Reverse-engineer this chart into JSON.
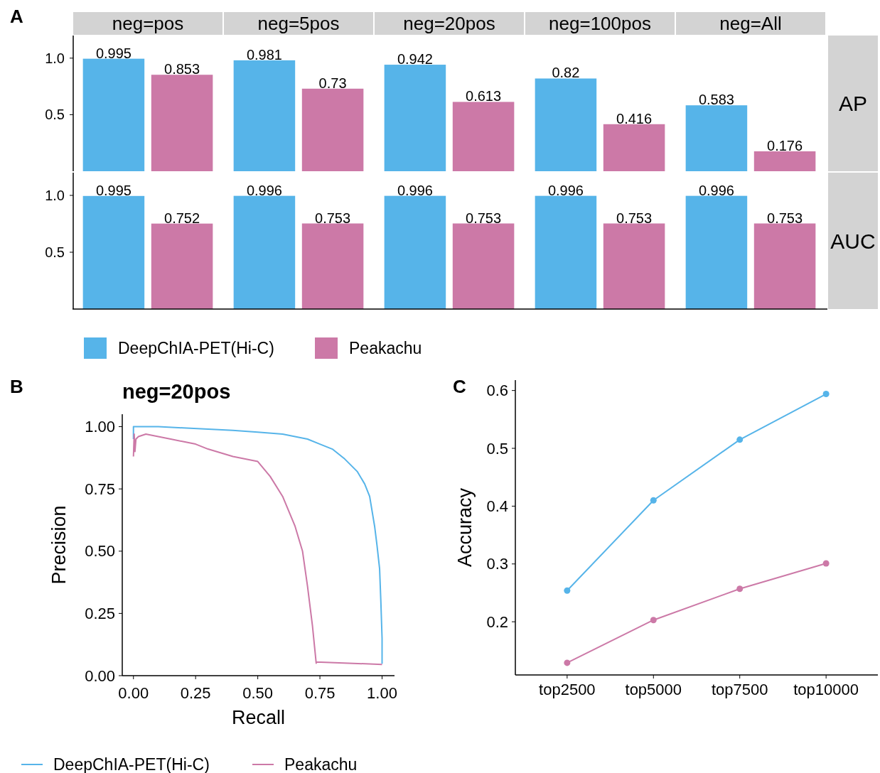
{
  "chart_data": [
    {
      "type": "bar",
      "annotations": [
        "A"
      ],
      "y2label": "AP",
      "categories": [
        "neg=pos",
        "neg=5pos",
        "neg=20pos",
        "neg=100pos",
        "neg=All"
      ],
      "series": [
        {
          "color": "#56b4e9",
          "values": [
            0.995,
            0.981,
            0.942,
            0.82,
            0.583
          ]
        },
        {
          "color": "#cc79a7",
          "values": [
            0.853,
            0.73,
            0.613,
            0.416,
            0.176
          ]
        }
      ],
      "ylim": [
        0,
        1.2
      ],
      "yticks": [
        {
          "value": 0.5,
          "label": "0.5"
        },
        {
          "value": 1,
          "label": "1.0"
        }
      ],
      "data_labels": true
    },
    {
      "type": "bar",
      "y2label": "AUC",
      "categories": [
        null,
        null,
        null,
        null,
        null
      ],
      "series": [
        {
          "name": "DeepChIA-PET(Hi-C)",
          "color": "#56b4e9",
          "values": [
            0.995,
            0.996,
            0.996,
            0.996,
            0.996
          ]
        },
        {
          "name": "Peakachu",
          "color": "#cc79a7",
          "values": [
            0.752,
            0.753,
            0.753,
            0.753,
            0.753
          ]
        }
      ],
      "ylim": [
        0,
        1.2
      ],
      "yticks": [
        {
          "value": 0.5,
          "label": "0.5"
        },
        {
          "value": 1,
          "label": "1.0"
        }
      ],
      "tick_labels": "y",
      "data_labels": true,
      "legend": "bottom"
    },
    {
      "type": "line",
      "title": "neg=20pos",
      "annotations": [
        "B"
      ],
      "xlabel": "Recall",
      "ylabel": "Precision",
      "legend": "bottom",
      "xlim": [
        -0.045,
        1.05
      ],
      "ylim": [
        0,
        1.05
      ],
      "xticks": [
        {
          "value": 0,
          "label": "0.00"
        },
        {
          "value": 0.25,
          "label": "0.25"
        },
        {
          "value": 0.5,
          "label": "0.50"
        },
        {
          "value": 0.75,
          "label": "0.75"
        },
        {
          "value": 1,
          "label": "1.00"
        }
      ],
      "yticks": [
        {
          "value": 0,
          "label": "0.00"
        },
        {
          "value": 0.25,
          "label": "0.25"
        },
        {
          "value": 0.5,
          "label": "0.50"
        },
        {
          "value": 0.75,
          "label": "0.75"
        },
        {
          "value": 1,
          "label": "1.00"
        }
      ],
      "series": [
        {
          "name": "DeepChIA-PET(Hi-C)",
          "color": "#56b4e9",
          "x": [
            0,
            0,
            0.1,
            0.2,
            0.3,
            0.4,
            0.5,
            0.6,
            0.7,
            0.75,
            0.8,
            0.85,
            0.9,
            0.93,
            0.95,
            0.97,
            0.98,
            0.99,
            0.995,
            1,
            1
          ],
          "values": [
            0.95,
            1,
            1,
            0.995,
            0.99,
            0.985,
            0.978,
            0.97,
            0.95,
            0.93,
            0.91,
            0.87,
            0.82,
            0.77,
            0.72,
            0.6,
            0.52,
            0.43,
            0.3,
            0.15,
            0.048
          ]
        },
        {
          "name": "Peakachu",
          "color": "#cc79a7",
          "x": [
            0,
            0.003,
            0.006,
            0.01,
            0.02,
            0.05,
            0.1,
            0.15,
            0.2,
            0.25,
            0.3,
            0.4,
            0.5,
            0.55,
            0.6,
            0.65,
            0.68,
            0.7,
            0.72,
            0.73,
            0.735,
            0.735,
            1
          ],
          "values": [
            0.88,
            0.97,
            0.9,
            0.95,
            0.96,
            0.97,
            0.96,
            0.95,
            0.94,
            0.93,
            0.91,
            0.88,
            0.86,
            0.8,
            0.72,
            0.6,
            0.5,
            0.36,
            0.2,
            0.1,
            0.05,
            0.055,
            0.045
          ]
        }
      ]
    },
    {
      "type": "line",
      "annotations": [
        "C"
      ],
      "ylabel": "Accuracy",
      "categories": [
        "top2500",
        "top5000",
        "top7500",
        "top10000"
      ],
      "ylim": [
        0.108,
        0.618
      ],
      "yticks": [
        0.2,
        0.3,
        0.4,
        0.5,
        0.6
      ],
      "marker": "circle",
      "series": [
        {
          "color": "#56b4e9",
          "values": [
            0.254,
            0.41,
            0.515,
            0.594
          ]
        },
        {
          "color": "#cc79a7",
          "values": [
            0.129,
            0.203,
            0.257,
            0.301
          ]
        }
      ]
    }
  ]
}
